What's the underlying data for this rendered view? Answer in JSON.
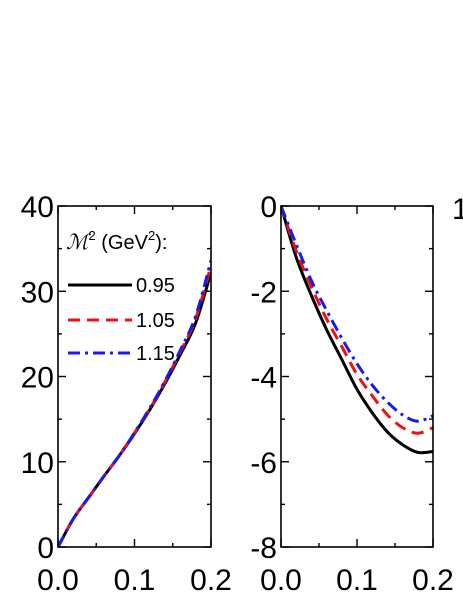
{
  "chart_data": [
    {
      "type": "line",
      "xlim": [
        0.0,
        0.2
      ],
      "ylim": [
        0,
        40
      ],
      "xticks": [
        0.0,
        0.1,
        0.2
      ],
      "xtick_labels": [
        "0.0",
        "0.1",
        "0.2"
      ],
      "yticks": [
        0,
        10,
        20,
        30,
        40
      ],
      "ytick_labels": [
        "0",
        "10",
        "20",
        "30",
        "40"
      ],
      "legend": {
        "title_symbol": "ℳ",
        "title_sup": "2",
        "title_unit": " (GeV",
        "title_unit_sup": "2",
        "title_end": "):",
        "placement": "top-left"
      },
      "series": [
        {
          "name": "0.95",
          "color": "#000000",
          "dash": "solid",
          "x": [
            0.0,
            0.02,
            0.04,
            0.06,
            0.08,
            0.1,
            0.12,
            0.14,
            0.16,
            0.18,
            0.2
          ],
          "y": [
            0,
            3.3,
            5.8,
            8.3,
            10.7,
            13.3,
            16.1,
            19.2,
            22.6,
            26.3,
            32.2
          ]
        },
        {
          "name": "1.05",
          "color": "#ee1111",
          "dash": "dash",
          "x": [
            0.0,
            0.02,
            0.04,
            0.06,
            0.08,
            0.1,
            0.12,
            0.14,
            0.16,
            0.18,
            0.2
          ],
          "y": [
            0,
            3.3,
            5.8,
            8.3,
            10.7,
            13.4,
            16.2,
            19.4,
            22.9,
            26.8,
            33.0
          ]
        },
        {
          "name": "1.15",
          "color": "#1a1aee",
          "dash": "dashdot",
          "x": [
            0.0,
            0.02,
            0.04,
            0.06,
            0.08,
            0.1,
            0.12,
            0.14,
            0.16,
            0.18,
            0.2
          ],
          "y": [
            0,
            3.3,
            5.8,
            8.3,
            10.7,
            13.4,
            16.3,
            19.5,
            23.1,
            27.1,
            33.6
          ]
        }
      ]
    },
    {
      "type": "line",
      "xlim": [
        0.0,
        0.2
      ],
      "ylim": [
        -8,
        0
      ],
      "xticks": [
        0.0,
        0.1,
        0.2
      ],
      "xtick_labels": [
        "0.0",
        "0.1",
        "0.2"
      ],
      "yticks": [
        -8,
        -6,
        -4,
        -2,
        0
      ],
      "ytick_labels": [
        "-8",
        "-6",
        "-4",
        "-2",
        "0"
      ],
      "series": [
        {
          "name": "0.95",
          "color": "#000000",
          "dash": "solid",
          "x": [
            0.0,
            0.02,
            0.04,
            0.06,
            0.08,
            0.1,
            0.12,
            0.14,
            0.16,
            0.18,
            0.2
          ],
          "y": [
            0,
            -1.2,
            -2.1,
            -2.9,
            -3.6,
            -4.3,
            -4.85,
            -5.3,
            -5.6,
            -5.78,
            -5.76
          ]
        },
        {
          "name": "1.05",
          "color": "#ee1111",
          "dash": "dash",
          "x": [
            0.0,
            0.02,
            0.04,
            0.06,
            0.08,
            0.1,
            0.12,
            0.14,
            0.16,
            0.18,
            0.2
          ],
          "y": [
            0,
            -1.05,
            -1.9,
            -2.65,
            -3.3,
            -3.95,
            -4.45,
            -4.9,
            -5.2,
            -5.33,
            -5.2
          ]
        },
        {
          "name": "1.15",
          "color": "#1a1aee",
          "dash": "dashdot",
          "x": [
            0.0,
            0.02,
            0.04,
            0.06,
            0.08,
            0.1,
            0.12,
            0.14,
            0.16,
            0.18,
            0.2
          ],
          "y": [
            0,
            -0.9,
            -1.75,
            -2.45,
            -3.1,
            -3.7,
            -4.2,
            -4.6,
            -4.9,
            -5.05,
            -4.92
          ]
        }
      ]
    }
  ],
  "partial_tick_label": "1"
}
